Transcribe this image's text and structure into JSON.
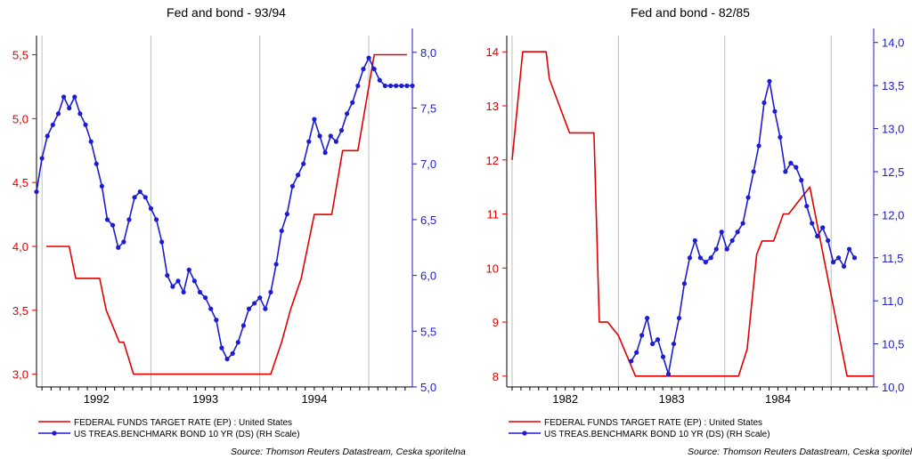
{
  "source_text": "Source: Thomson Reuters Datastream, Ceska sporitelna",
  "colors": {
    "fed": "#e00000",
    "bond": "#1c1cd0",
    "left_axis": "#000000",
    "right_axis": "#1c1cd0"
  },
  "chart_data": [
    {
      "type": "line",
      "title": "Fed and bond - 93/94",
      "x_range": [
        1991.45,
        1994.9
      ],
      "x_tick_labels": [
        {
          "x": 1992.0,
          "label": "1992"
        },
        {
          "x": 1993.0,
          "label": "1993"
        },
        {
          "x": 1994.0,
          "label": "1994"
        }
      ],
      "x_year_boundaries": [
        1991.5,
        1992.5,
        1993.5,
        1994.5
      ],
      "ylim_left": [
        2.9,
        5.65
      ],
      "yticks_left": [
        "3,0",
        "3,5",
        "4,0",
        "4,5",
        "5,0",
        "5,5"
      ],
      "ylim_right": [
        5.0,
        8.15
      ],
      "yticks_right": [
        "5,0",
        "5,5",
        "6,0",
        "6,5",
        "7,0",
        "7,5",
        "8,0"
      ],
      "series": [
        {
          "name": "FEDERAL FUNDS TARGET RATE (EP) : United States",
          "axis": "left",
          "style": "line",
          "x": [
            1991.54,
            1991.75,
            1991.81,
            1991.98,
            1992.03,
            1992.09,
            1992.21,
            1992.25,
            1992.34,
            1992.36,
            1992.5,
            1992.8,
            1993.6,
            1993.7,
            1993.78,
            1993.88,
            1994.0,
            1994.16,
            1994.26,
            1994.4,
            1994.55,
            1994.65,
            1994.85
          ],
          "y": [
            4.0,
            4.0,
            3.75,
            3.75,
            3.75,
            3.5,
            3.25,
            3.25,
            3.0,
            3.0,
            3.0,
            3.0,
            3.0,
            3.25,
            3.5,
            3.75,
            4.25,
            4.25,
            4.75,
            4.75,
            5.5,
            5.5,
            5.5
          ]
        },
        {
          "name": "US TREAS.BENCHMARK BOND 10 YR (DS) (RH Scale)",
          "axis": "right",
          "style": "line-markers",
          "x": [
            1991.45,
            1991.5,
            1991.55,
            1991.6,
            1991.65,
            1991.7,
            1991.75,
            1991.8,
            1991.85,
            1991.9,
            1991.95,
            1992.0,
            1992.05,
            1992.1,
            1992.15,
            1992.2,
            1992.25,
            1992.3,
            1992.35,
            1992.4,
            1992.45,
            1992.5,
            1992.55,
            1992.6,
            1992.65,
            1992.7,
            1992.75,
            1992.8,
            1992.85,
            1992.9,
            1992.95,
            1993.0,
            1993.05,
            1993.1,
            1993.15,
            1993.2,
            1993.25,
            1993.3,
            1993.35,
            1993.4,
            1993.45,
            1993.5,
            1993.55,
            1993.6,
            1993.65,
            1993.7,
            1993.75,
            1993.8,
            1993.85,
            1993.9,
            1993.95,
            1994.0,
            1994.05,
            1994.1,
            1994.15,
            1994.2,
            1994.25,
            1994.3,
            1994.35,
            1994.4,
            1994.45,
            1994.5,
            1994.55,
            1994.6,
            1994.65,
            1994.7,
            1994.75,
            1994.8,
            1994.85,
            1994.9
          ],
          "y": [
            6.75,
            7.05,
            7.25,
            7.35,
            7.45,
            7.6,
            7.5,
            7.6,
            7.45,
            7.35,
            7.2,
            7.0,
            6.8,
            6.5,
            6.45,
            6.25,
            6.3,
            6.5,
            6.7,
            6.75,
            6.7,
            6.6,
            6.5,
            6.3,
            6.0,
            5.9,
            5.95,
            5.85,
            6.05,
            5.95,
            5.85,
            5.8,
            5.7,
            5.6,
            5.35,
            5.25,
            5.3,
            5.4,
            5.55,
            5.7,
            5.75,
            5.8,
            5.7,
            5.85,
            6.1,
            6.4,
            6.55,
            6.8,
            6.9,
            7.0,
            7.2,
            7.4,
            7.25,
            7.1,
            7.25,
            7.2,
            7.3,
            7.45,
            7.55,
            7.7,
            7.85,
            7.95,
            7.85,
            7.75,
            7.7,
            7.7,
            7.7,
            7.7,
            7.7,
            7.7
          ]
        }
      ]
    },
    {
      "type": "line",
      "title": "Fed and bond - 82/85",
      "x_range": [
        1981.45,
        1984.9
      ],
      "x_tick_labels": [
        {
          "x": 1982.0,
          "label": "1982"
        },
        {
          "x": 1983.0,
          "label": "1983"
        },
        {
          "x": 1984.0,
          "label": "1984"
        }
      ],
      "x_year_boundaries": [
        1981.5,
        1982.5,
        1983.5,
        1984.5
      ],
      "ylim_left": [
        7.8,
        14.3
      ],
      "yticks_left": [
        "8",
        "9",
        "10",
        "11",
        "12",
        "13",
        "14"
      ],
      "ylim_right": [
        10.0,
        14.08
      ],
      "yticks_right": [
        "10,0",
        "10,5",
        "11,0",
        "11,5",
        "12,0",
        "12,5",
        "13,0",
        "13,5",
        "14,0"
      ],
      "series": [
        {
          "name": "FEDERAL FUNDS TARGET RATE (EP) : United States",
          "axis": "left",
          "style": "line",
          "x": [
            1981.5,
            1981.6,
            1981.82,
            1981.85,
            1982.04,
            1982.11,
            1982.27,
            1982.32,
            1982.4,
            1982.5,
            1982.66,
            1982.85,
            1983.3,
            1983.63,
            1983.71,
            1983.8,
            1983.85,
            1983.91,
            1983.96,
            1984.05,
            1984.1,
            1984.2,
            1984.3,
            1984.65,
            1984.9
          ],
          "y": [
            12.0,
            14.0,
            14.0,
            13.5,
            12.5,
            12.5,
            12.5,
            9.0,
            9.0,
            8.75,
            8.0,
            8.0,
            8.0,
            8.0,
            8.5,
            10.25,
            10.5,
            10.5,
            10.5,
            11.0,
            11.0,
            11.25,
            11.5,
            8.0,
            8.0
          ]
        },
        {
          "name": "US TREAS.BENCHMARK BOND 10 YR (DS) (RH Scale)",
          "axis": "right",
          "style": "line-markers",
          "x": [
            1982.62,
            1982.67,
            1982.72,
            1982.77,
            1982.82,
            1982.87,
            1982.92,
            1982.97,
            1983.02,
            1983.07,
            1983.12,
            1983.17,
            1983.22,
            1983.27,
            1983.32,
            1983.37,
            1983.42,
            1983.47,
            1983.52,
            1983.57,
            1983.62,
            1983.67,
            1983.72,
            1983.77,
            1983.82,
            1983.87,
            1983.92,
            1983.97,
            1984.02,
            1984.07,
            1984.12,
            1984.17,
            1984.22,
            1984.27,
            1984.32,
            1984.37,
            1984.42,
            1984.47,
            1984.52,
            1984.57,
            1984.62,
            1984.67,
            1984.72
          ],
          "y": [
            10.3,
            10.4,
            10.6,
            10.8,
            10.5,
            10.55,
            10.35,
            10.15,
            10.5,
            10.8,
            11.2,
            11.5,
            11.7,
            11.5,
            11.45,
            11.5,
            11.6,
            11.8,
            11.6,
            11.7,
            11.8,
            11.9,
            12.2,
            12.5,
            12.8,
            13.3,
            13.55,
            13.2,
            12.9,
            12.5,
            12.6,
            12.55,
            12.4,
            12.1,
            11.9,
            11.75,
            11.85,
            11.7,
            11.45,
            11.5,
            11.4,
            11.6,
            11.5
          ]
        }
      ]
    }
  ]
}
